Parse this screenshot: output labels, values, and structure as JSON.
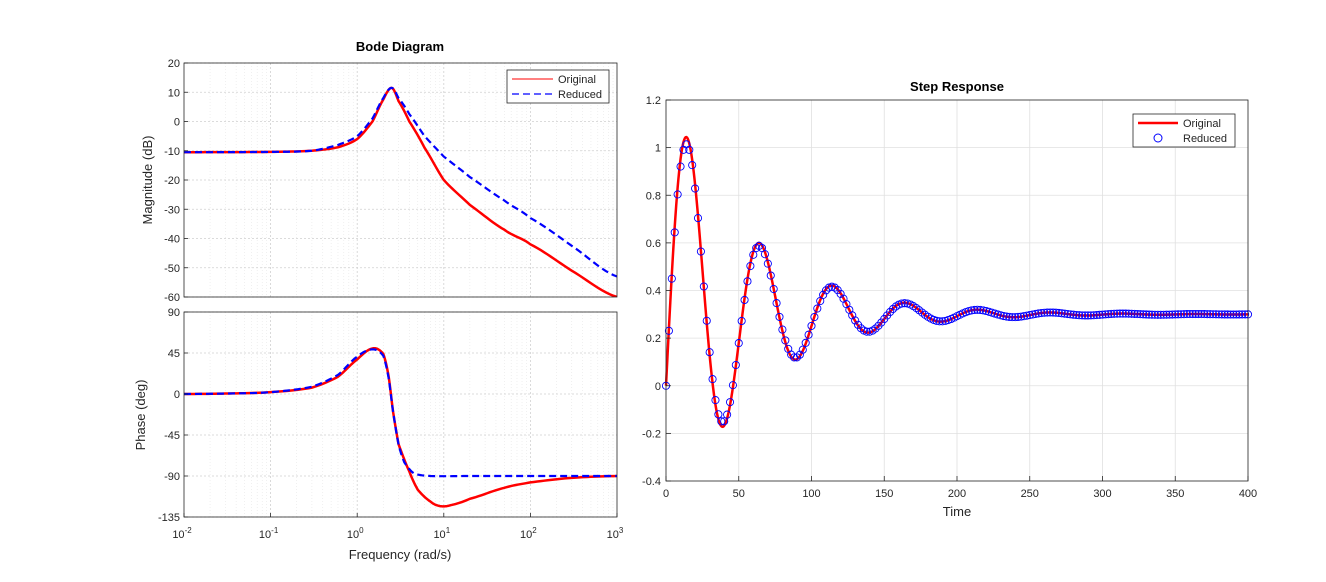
{
  "chart_data": [
    {
      "type": "line",
      "subplot": "bode-magnitude",
      "title": "Bode Diagram",
      "ylabel": "Magnitude (dB)",
      "xscale": "log",
      "xlim": [
        0.01,
        1000
      ],
      "ylim": [
        -60,
        20
      ],
      "yticks": [
        "20",
        "10",
        "0",
        "-10",
        "-20",
        "-30",
        "-40",
        "-50",
        "-60"
      ],
      "grid": true,
      "legend": "top-right",
      "series": [
        {
          "name": "Original",
          "color": "#ff0000",
          "style": "solid",
          "x": [
            0.01,
            0.1,
            0.3,
            0.6,
            1.0,
            1.5,
            2.0,
            2.5,
            3.0,
            4.0,
            6.0,
            10,
            20,
            50,
            100,
            300,
            1000
          ],
          "y": [
            -10.5,
            -10.4,
            -10.0,
            -8.8,
            -6.0,
            0.0,
            7.5,
            11.5,
            7.0,
            0.0,
            -9.0,
            -20.0,
            -28.5,
            -37.0,
            -42.0,
            -51.0,
            -60.0
          ]
        },
        {
          "name": "Reduced",
          "color": "#0000ff",
          "style": "dashed",
          "x": [
            0.01,
            0.1,
            0.3,
            0.6,
            1.0,
            1.5,
            2.0,
            2.5,
            3.0,
            4.0,
            6.0,
            10,
            20,
            50,
            100,
            300,
            1000
          ],
          "y": [
            -10.5,
            -10.4,
            -10.0,
            -8.0,
            -5.0,
            1.0,
            8.0,
            11.5,
            8.0,
            2.5,
            -5.0,
            -12.0,
            -19.0,
            -27.0,
            -33.0,
            -42.5,
            -53.0
          ]
        }
      ]
    },
    {
      "type": "line",
      "subplot": "bode-phase",
      "ylabel": "Phase (deg)",
      "xlabel": "Frequency  (rad/s)",
      "xscale": "log",
      "xlim": [
        0.01,
        1000
      ],
      "ylim": [
        -135,
        90
      ],
      "yticks": [
        "90",
        "45",
        "0",
        "-45",
        "-90",
        "-135"
      ],
      "xticks": [
        {
          "base": "10",
          "exp": "-2"
        },
        {
          "base": "10",
          "exp": "-1"
        },
        {
          "base": "10",
          "exp": "0"
        },
        {
          "base": "10",
          "exp": "1"
        },
        {
          "base": "10",
          "exp": "2"
        },
        {
          "base": "10",
          "exp": "3"
        }
      ],
      "grid": true,
      "series": [
        {
          "name": "Original",
          "color": "#ff0000",
          "style": "solid",
          "x": [
            0.01,
            0.03,
            0.1,
            0.3,
            0.6,
            1.0,
            1.5,
            2.0,
            2.3,
            2.6,
            3.0,
            4.0,
            5.0,
            7.0,
            9.0,
            12,
            20,
            50,
            100,
            300,
            1000
          ],
          "y": [
            0,
            0.5,
            2,
            7,
            19,
            38,
            50,
            44,
            20,
            -20,
            -55,
            -85,
            -105,
            -118,
            -123,
            -122,
            -115,
            -103,
            -97,
            -92,
            -90
          ]
        },
        {
          "name": "Reduced",
          "color": "#0000ff",
          "style": "dashed",
          "x": [
            0.01,
            0.03,
            0.1,
            0.3,
            0.6,
            1.0,
            1.5,
            2.0,
            2.3,
            2.6,
            3.0,
            3.5,
            4.5,
            7.0,
            20,
            100,
            1000
          ],
          "y": [
            0,
            0.5,
            2,
            8,
            21,
            41,
            49,
            42,
            18,
            -20,
            -55,
            -75,
            -87,
            -90,
            -90,
            -90,
            -90
          ]
        }
      ]
    },
    {
      "type": "line",
      "subplot": "step-response",
      "title": "Step Response",
      "xlabel": "Time",
      "xlim": [
        0,
        400
      ],
      "ylim": [
        -0.4,
        1.2
      ],
      "xticks": [
        "0",
        "50",
        "100",
        "150",
        "200",
        "250",
        "300",
        "350",
        "400"
      ],
      "yticks": [
        "1.2",
        "1",
        "0.8",
        "0.6",
        "0.4",
        "0.2",
        "0",
        "-0.2",
        "-0.4"
      ],
      "grid": true,
      "legend": "top-right",
      "model": {
        "final_value": 0.3,
        "overshoot_amplitude": 0.86,
        "period": 50,
        "decay_time": 55
      },
      "series": [
        {
          "name": "Original",
          "color": "#ff0000",
          "style": "solid-line"
        },
        {
          "name": "Reduced",
          "color": "#0000ff",
          "style": "circle-markers"
        }
      ]
    }
  ]
}
